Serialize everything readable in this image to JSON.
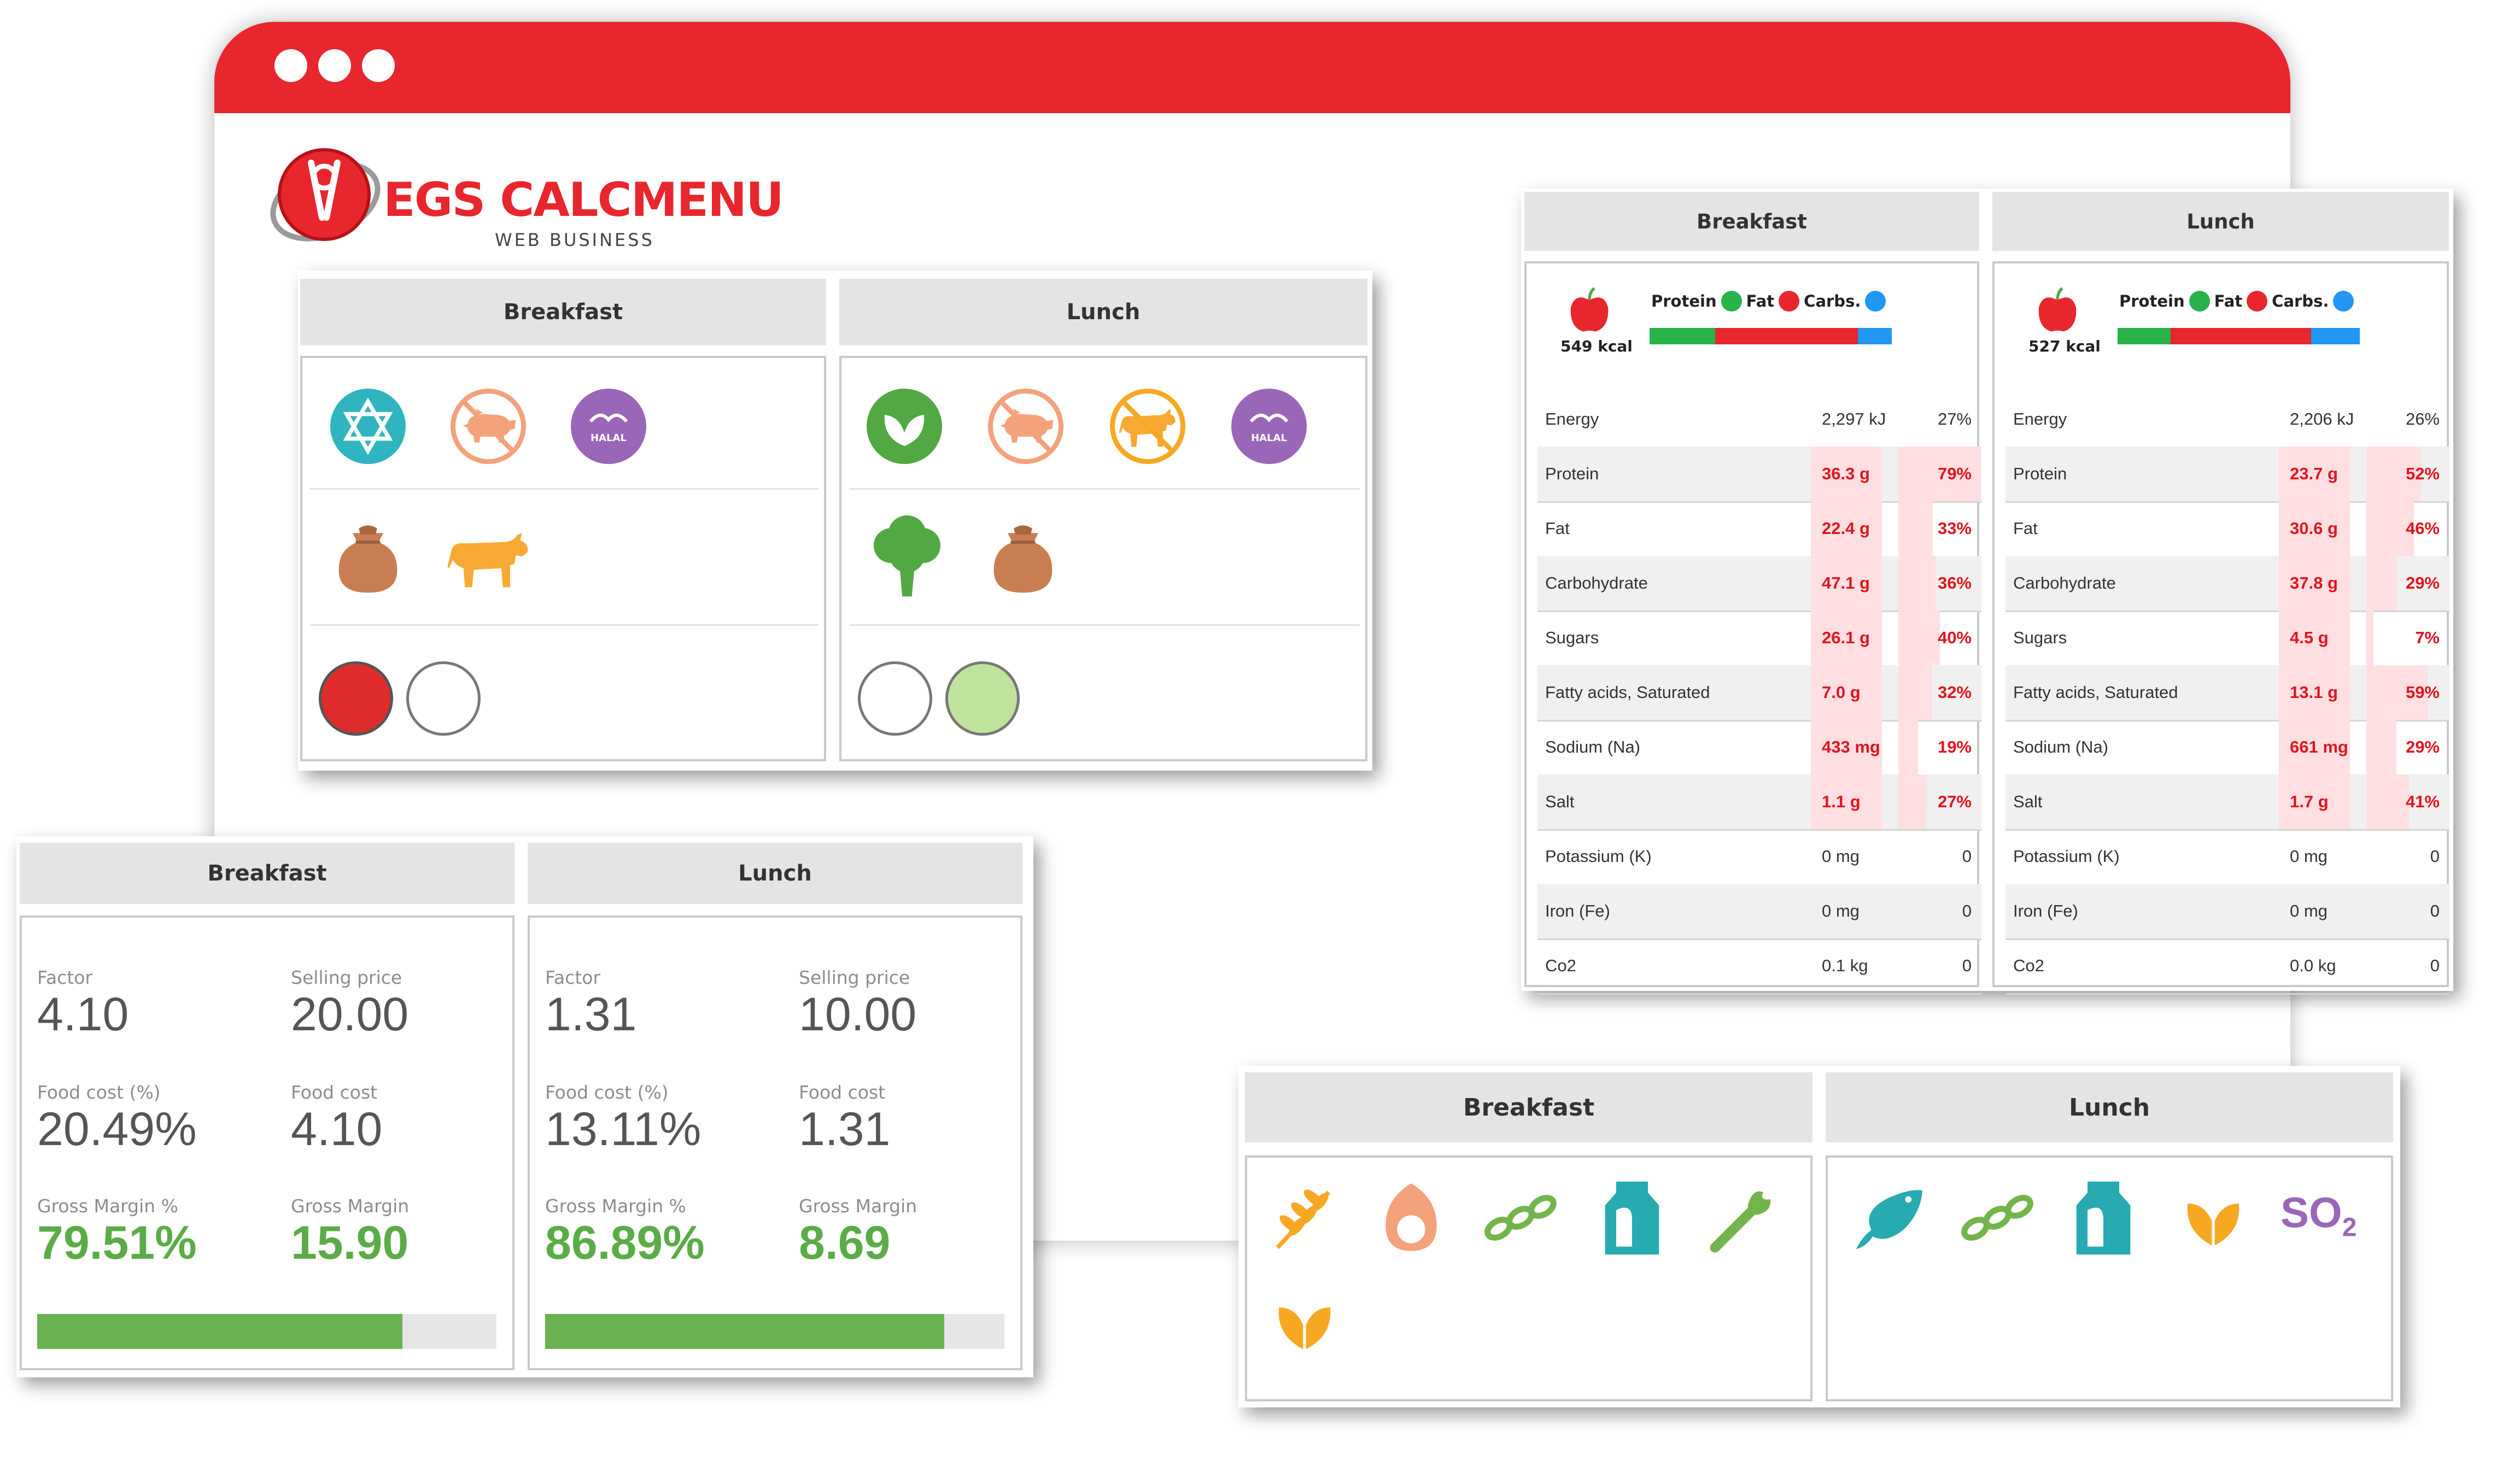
{
  "brand": {
    "name": "EGS CALCMENU",
    "tagline": "WEB BUSINESS",
    "color": "#e8262d"
  },
  "columns": [
    "Breakfast",
    "Lunch"
  ],
  "diet_panel": {
    "breakfast": {
      "title": "Breakfast",
      "row1": [
        "kosher-star-icon",
        "no-pork-icon",
        "halal-icon"
      ],
      "row2": [
        "grain-sack-icon",
        "beef-icon"
      ],
      "row3": [
        "red-circle",
        "empty-circle"
      ]
    },
    "lunch": {
      "title": "Lunch",
      "row1": [
        "vegetarian-leaf-icon",
        "no-pork-icon",
        "no-beef-icon",
        "halal-icon"
      ],
      "row2": [
        "broccoli-icon",
        "grain-sack-icon"
      ],
      "row3": [
        "empty-circle",
        "green-circle"
      ]
    },
    "halal_label": "HALAL"
  },
  "cost_panel": {
    "breakfast": {
      "title": "Breakfast",
      "factor_label": "Factor",
      "factor": "4.10",
      "selling_price_label": "Selling price",
      "selling_price": "20.00",
      "food_cost_pct_label": "Food cost (%)",
      "food_cost_pct": "20.49%",
      "food_cost_label": "Food cost",
      "food_cost": "4.10",
      "gross_margin_pct_label": "Gross Margin %",
      "gross_margin_pct": "79.51%",
      "gross_margin_label": "Gross Margin",
      "gross_margin": "15.90",
      "margin_fill": 0.7951
    },
    "lunch": {
      "title": "Lunch",
      "factor_label": "Factor",
      "factor": "1.31",
      "selling_price_label": "Selling price",
      "selling_price": "10.00",
      "food_cost_pct_label": "Food cost (%)",
      "food_cost_pct": "13.11%",
      "food_cost_label": "Food cost",
      "food_cost": "1.31",
      "gross_margin_pct_label": "Gross Margin %",
      "gross_margin_pct": "86.89%",
      "gross_margin_label": "Gross Margin",
      "gross_margin": "8.69",
      "margin_fill": 0.8689
    }
  },
  "nutrition_panel": {
    "macro_labels": {
      "protein": "Protein",
      "fat": "Fat",
      "carbs": "Carbs."
    },
    "colors": {
      "protein": "#27b24a",
      "fat": "#e8262d",
      "carbs": "#2196f3"
    },
    "breakfast": {
      "title": "Breakfast",
      "kcal": "549 kcal",
      "macro_split": {
        "protein": 0.27,
        "fat": 0.59,
        "carbs": 0.14
      },
      "rows": [
        {
          "name": "Energy",
          "amount": "2,297 kJ",
          "pct": "27%",
          "flag": false
        },
        {
          "name": "Protein",
          "amount": "36.3 g",
          "pct": "79%",
          "flag": true
        },
        {
          "name": "Fat",
          "amount": "22.4 g",
          "pct": "33%",
          "flag": true
        },
        {
          "name": "Carbohydrate",
          "amount": "47.1 g",
          "pct": "36%",
          "flag": true
        },
        {
          "name": "Sugars",
          "amount": "26.1 g",
          "pct": "40%",
          "flag": true
        },
        {
          "name": "Fatty acids, Saturated",
          "amount": "7.0 g",
          "pct": "32%",
          "flag": true
        },
        {
          "name": "Sodium (Na)",
          "amount": "433 mg",
          "pct": "19%",
          "flag": true
        },
        {
          "name": "Salt",
          "amount": "1.1 g",
          "pct": "27%",
          "flag": true
        },
        {
          "name": "Potassium (K)",
          "amount": "0 mg",
          "pct": "0",
          "flag": false
        },
        {
          "name": "Iron (Fe)",
          "amount": "0 mg",
          "pct": "0",
          "flag": false
        },
        {
          "name": "Co2",
          "amount": "0.1 kg",
          "pct": "0",
          "flag": false
        }
      ]
    },
    "lunch": {
      "title": "Lunch",
      "kcal": "527 kcal",
      "macro_split": {
        "protein": 0.22,
        "fat": 0.58,
        "carbs": 0.2
      },
      "rows": [
        {
          "name": "Energy",
          "amount": "2,206 kJ",
          "pct": "26%",
          "flag": false
        },
        {
          "name": "Protein",
          "amount": "23.7 g",
          "pct": "52%",
          "flag": true
        },
        {
          "name": "Fat",
          "amount": "30.6 g",
          "pct": "46%",
          "flag": true
        },
        {
          "name": "Carbohydrate",
          "amount": "37.8 g",
          "pct": "29%",
          "flag": true
        },
        {
          "name": "Sugars",
          "amount": "4.5 g",
          "pct": "7%",
          "flag": true
        },
        {
          "name": "Fatty acids, Saturated",
          "amount": "13.1 g",
          "pct": "59%",
          "flag": true
        },
        {
          "name": "Sodium (Na)",
          "amount": "661 mg",
          "pct": "29%",
          "flag": true
        },
        {
          "name": "Salt",
          "amount": "1.7 g",
          "pct": "41%",
          "flag": true
        },
        {
          "name": "Potassium (K)",
          "amount": "0 mg",
          "pct": "0",
          "flag": false
        },
        {
          "name": "Iron (Fe)",
          "amount": "0 mg",
          "pct": "0",
          "flag": false
        },
        {
          "name": "Co2",
          "amount": "0.0 kg",
          "pct": "0",
          "flag": false
        }
      ]
    }
  },
  "allergen_panel": {
    "breakfast": {
      "title": "Breakfast",
      "icons": [
        "gluten-wheat-icon",
        "egg-icon",
        "lupin-chain-icon",
        "milk-carton-icon",
        "celery-icon",
        "nuts-leaf-icon"
      ]
    },
    "lunch": {
      "title": "Lunch",
      "icons": [
        "fish-icon",
        "lupin-chain-icon",
        "milk-carton-icon",
        "nuts-leaf-icon",
        "sulphites-so2-icon"
      ],
      "so2_label": "SO",
      "so2_sub": "2"
    }
  }
}
